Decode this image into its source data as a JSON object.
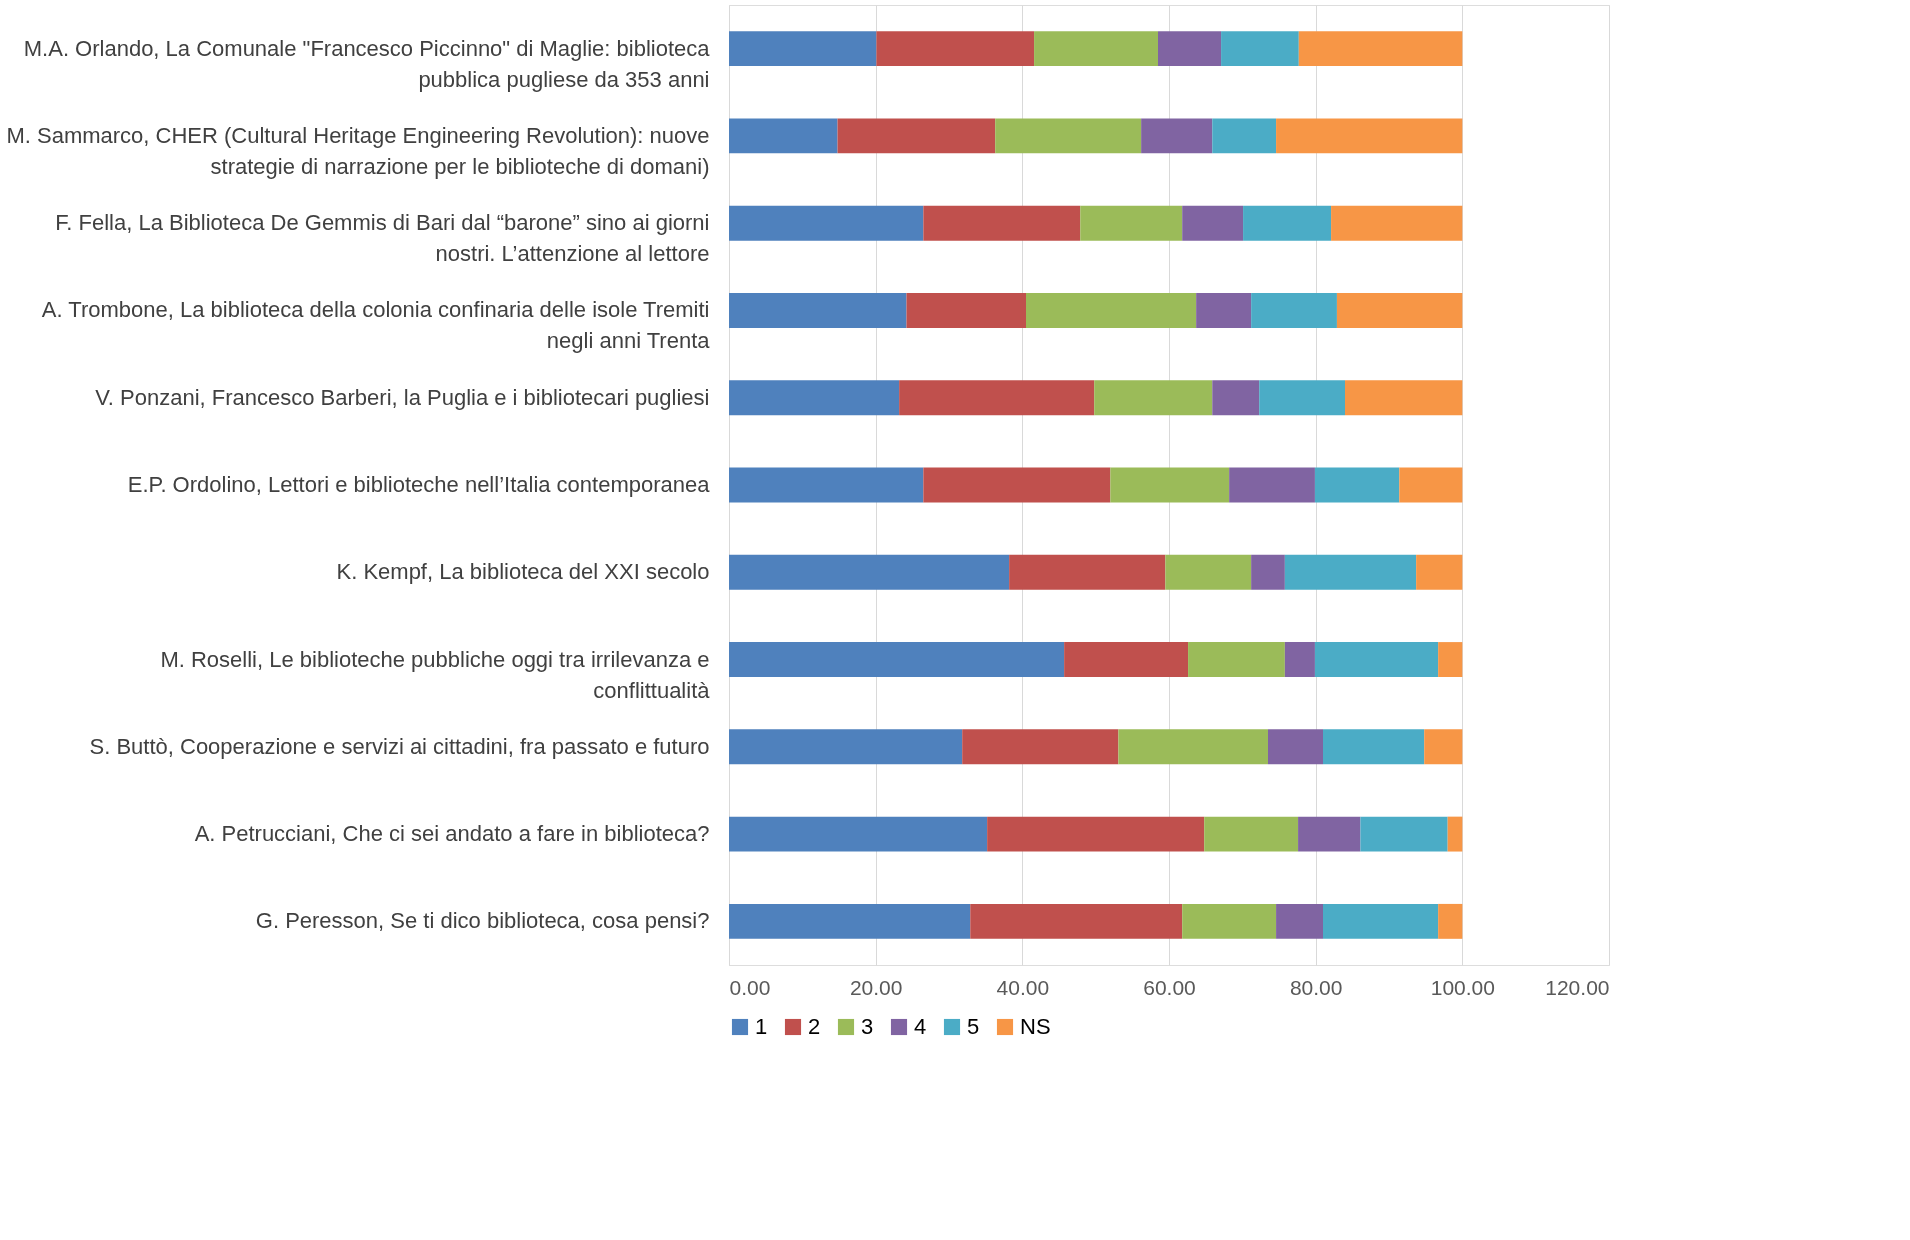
{
  "chart_data": {
    "type": "bar",
    "orientation": "horizontal",
    "stacked": true,
    "categories": [
      "M.A. Orlando, La Comunale \"Francesco Piccinno\" di Maglie: biblioteca pubblica pugliese da 353 anni",
      "M. Sammarco, CHER (Cultural Heritage Engineering Revolution): nuove strategie di narrazione per le biblioteche di domani)",
      "F. Fella, La Biblioteca De Gemmis di Bari dal “barone” sino ai giorni nostri. L’attenzione al lettore",
      "A. Trombone, La biblioteca della colonia confinaria delle isole Tremiti negli anni Trenta",
      "V. Ponzani, Francesco Barberi, la Puglia e i bibliotecari pugliesi",
      "E.P. Ordolino, Lettori e biblioteche nell’Italia contemporanea",
      "K. Kempf, La biblioteca del XXI secolo",
      "M. Roselli, Le biblioteche pubbliche oggi tra irrilevanza e conflittualità",
      "S. Buttò, Cooperazione e servizi ai cittadini, fra passato e futuro",
      "A. Petrucciani, Che ci sei andato a fare in biblioteca?",
      "G. Peresson, Se ti dico biblioteca, cosa pensi?"
    ],
    "series": [
      {
        "name": "1",
        "color": "#4f81bd",
        "values": [
          20.1,
          14.8,
          26.5,
          24.2,
          23.2,
          26.5,
          38.2,
          45.7,
          31.8,
          35.2,
          32.9
        ]
      },
      {
        "name": "2",
        "color": "#c0504d",
        "values": [
          21.5,
          21.5,
          21.4,
          16.3,
          26.6,
          25.5,
          21.3,
          16.9,
          21.3,
          29.6,
          28.9
        ]
      },
      {
        "name": "3",
        "color": "#9bbb59",
        "values": [
          16.9,
          19.9,
          13.9,
          23.2,
          16.1,
          16.2,
          11.7,
          13.2,
          20.4,
          12.8,
          12.8
        ]
      },
      {
        "name": "4",
        "color": "#8064a2",
        "values": [
          8.6,
          9.7,
          8.3,
          7.5,
          6.4,
          11.7,
          4.6,
          4.1,
          7.5,
          8.5,
          6.4
        ]
      },
      {
        "name": "5",
        "color": "#4bacc6",
        "values": [
          10.6,
          8.7,
          12.0,
          11.7,
          11.7,
          11.5,
          17.9,
          16.8,
          13.8,
          11.9,
          15.7
        ]
      },
      {
        "name": "NS",
        "color": "#f79646",
        "values": [
          22.3,
          25.4,
          17.9,
          17.1,
          16.0,
          8.6,
          6.3,
          3.3,
          5.2,
          2.0,
          3.3
        ]
      }
    ],
    "xlim": [
      0,
      120
    ],
    "xticks": [
      {
        "value": 0,
        "label": "0.00"
      },
      {
        "value": 20,
        "label": "20.00"
      },
      {
        "value": 40,
        "label": "40.00"
      },
      {
        "value": 60,
        "label": "60.00"
      },
      {
        "value": 80,
        "label": "80.00"
      },
      {
        "value": 100,
        "label": "100.00"
      },
      {
        "value": 120,
        "label": "120.00"
      }
    ],
    "grid": "x",
    "legend": "bottom"
  }
}
